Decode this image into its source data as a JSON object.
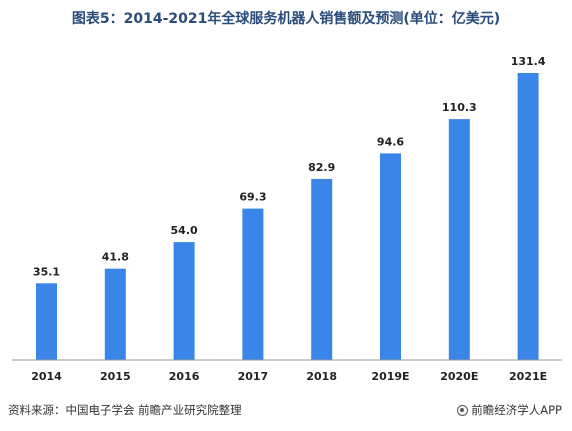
{
  "title": "图表5：2014-2021年全球服务机器人销售额及预测(单位：亿美元)",
  "source_text": "资料来源：中国电子学会 前瞻产业研究院整理",
  "brand_text": "前瞻经济学人APP",
  "colors": {
    "bar": "#3a85e8",
    "title": "#2a4c7a",
    "axis": "#999999"
  },
  "chart_data": {
    "type": "bar",
    "categories": [
      "2014",
      "2015",
      "2016",
      "2017",
      "2018",
      "2019E",
      "2020E",
      "2021E"
    ],
    "values": [
      35.1,
      41.8,
      54.0,
      69.3,
      82.9,
      94.6,
      110.3,
      131.4
    ],
    "value_labels": [
      "35.1",
      "41.8",
      "54.0",
      "69.3",
      "82.9",
      "94.6",
      "110.3",
      "131.4"
    ],
    "title": "图表5：2014-2021年全球服务机器人销售额及预测(单位：亿美元)",
    "xlabel": "",
    "ylabel": "",
    "ylim": [
      0,
      140
    ],
    "grid": false,
    "legend": "none"
  }
}
